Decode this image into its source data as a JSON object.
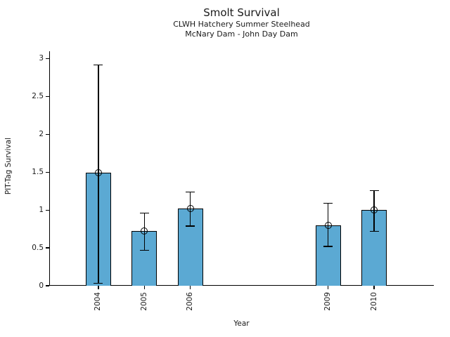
{
  "chart_data": {
    "type": "bar",
    "title": "Smolt Survival",
    "subtitles": [
      "CLWH Hatchery Summer Steelhead",
      "McNary Dam - John Day Dam"
    ],
    "xlabel": "Year",
    "ylabel": "PIT-Tag Survival",
    "categories": [
      2004,
      2005,
      2006,
      2009,
      2010
    ],
    "values": [
      1.49,
      0.72,
      1.02,
      0.8,
      1.0
    ],
    "error_low": [
      0.03,
      0.47,
      0.79,
      0.52,
      0.72
    ],
    "error_high": [
      2.92,
      0.96,
      1.24,
      1.09,
      1.26
    ],
    "xlim": [
      2002.93,
      2011.3
    ],
    "ylim": [
      0,
      3.1
    ],
    "yticks": [
      0,
      0.5,
      1,
      1.5,
      2,
      2.5,
      3
    ],
    "ytick_labels": [
      "0",
      "0.5",
      "1",
      "1.5",
      "2",
      "2.5",
      "3"
    ],
    "xtick_labels": [
      "2004",
      "2005",
      "2006",
      "2009",
      "2010"
    ],
    "bar_color": "#5BA9D3",
    "edge_color": "#000000",
    "marker": "open-circle",
    "grid": false,
    "legend": "none"
  }
}
